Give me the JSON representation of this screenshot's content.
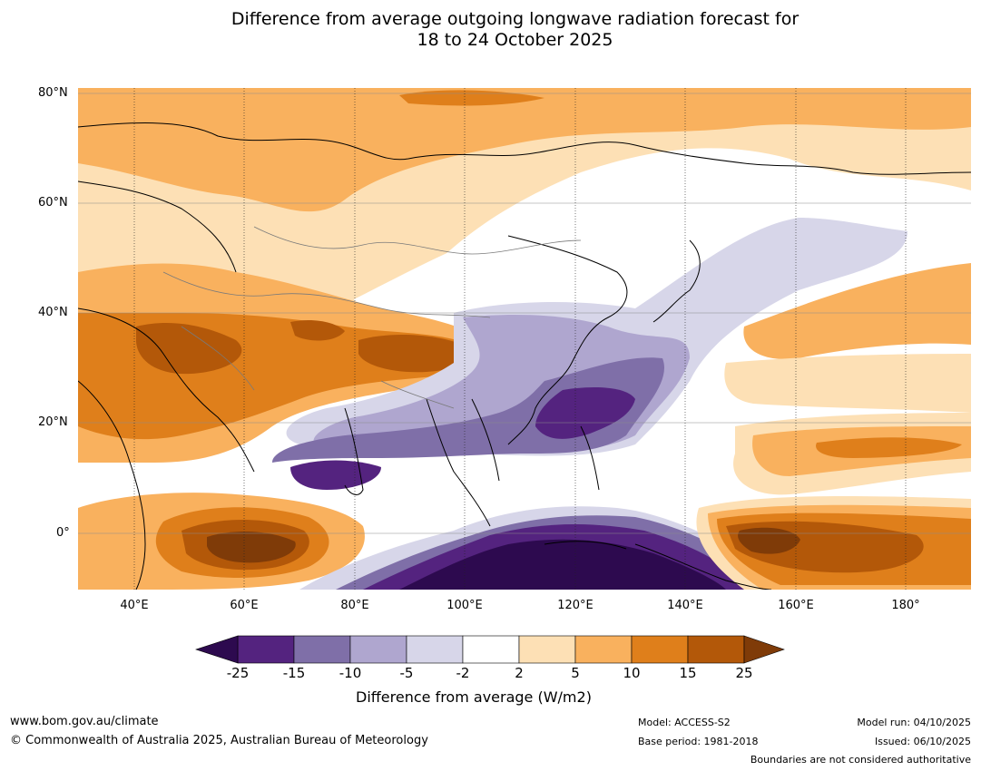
{
  "title": {
    "line1": "Difference from average outgoing longwave radiation forecast for",
    "line2": "18 to 24 October 2025"
  },
  "axes": {
    "lat_labels": [
      "80°N",
      "60°N",
      "40°N",
      "20°N",
      "0°"
    ],
    "lon_labels": [
      "40°E",
      "60°E",
      "80°E",
      "100°E",
      "120°E",
      "140°E",
      "160°E",
      "180°"
    ]
  },
  "colorbar": {
    "ticks": [
      "-25",
      "-15",
      "-10",
      "-5",
      "-2",
      "2",
      "5",
      "10",
      "15",
      "25"
    ],
    "label": "Difference from average (W/m2)",
    "colors": {
      "below": "#2d0a4f",
      "bins": [
        "#54237f",
        "#7f6fa8",
        "#afa6cf",
        "#d7d6e9",
        "#ffffff",
        "#fde0b5",
        "#f9b15e",
        "#df7f1b",
        "#b35809"
      ],
      "above": "#7f3b08"
    }
  },
  "footer": {
    "website": "www.bom.gov.au/climate",
    "copyright": "© Commonwealth of Australia 2025, Australian Bureau of Meteorology",
    "model": "Model: ACCESS-S2",
    "base_period": "Base period: 1981-2018",
    "model_run": "Model run: 04/10/2025",
    "issued": "Issued: 06/10/2025",
    "boundaries": "Boundaries are not considered authoritative"
  }
}
